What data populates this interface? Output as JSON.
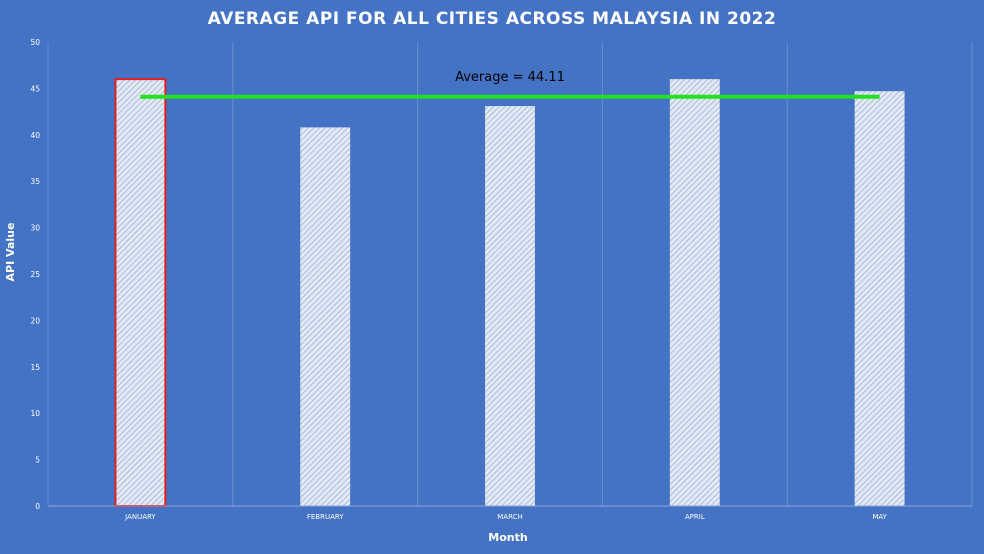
{
  "chart_data": {
    "type": "bar",
    "title": "AVERAGE API FOR ALL CITIES ACROSS MALAYSIA IN 2022",
    "xlabel": "Month",
    "ylabel": "API Value",
    "categories": [
      "JANUARY",
      "FEBRUARY",
      "MARCH",
      "APRIL",
      "MAY"
    ],
    "values": [
      46.0,
      40.8,
      43.1,
      46.0,
      44.7
    ],
    "ylim": [
      0,
      50
    ],
    "yticks": [
      "0",
      "5",
      "10",
      "15",
      "20",
      "25",
      "30",
      "35",
      "40",
      "45",
      "50"
    ],
    "grid": "vertical",
    "highlighted_category": "JANUARY",
    "average_line": {
      "value": 44.1,
      "label": "Average = 44.11"
    },
    "colors": {
      "background": "#4472c4",
      "bar_fill": "#dfe6f3",
      "bar_hatch": "#8fa6cf",
      "highlight_outline": "#e0201e",
      "average_line": "#22e022",
      "text": "#ffffff"
    }
  }
}
